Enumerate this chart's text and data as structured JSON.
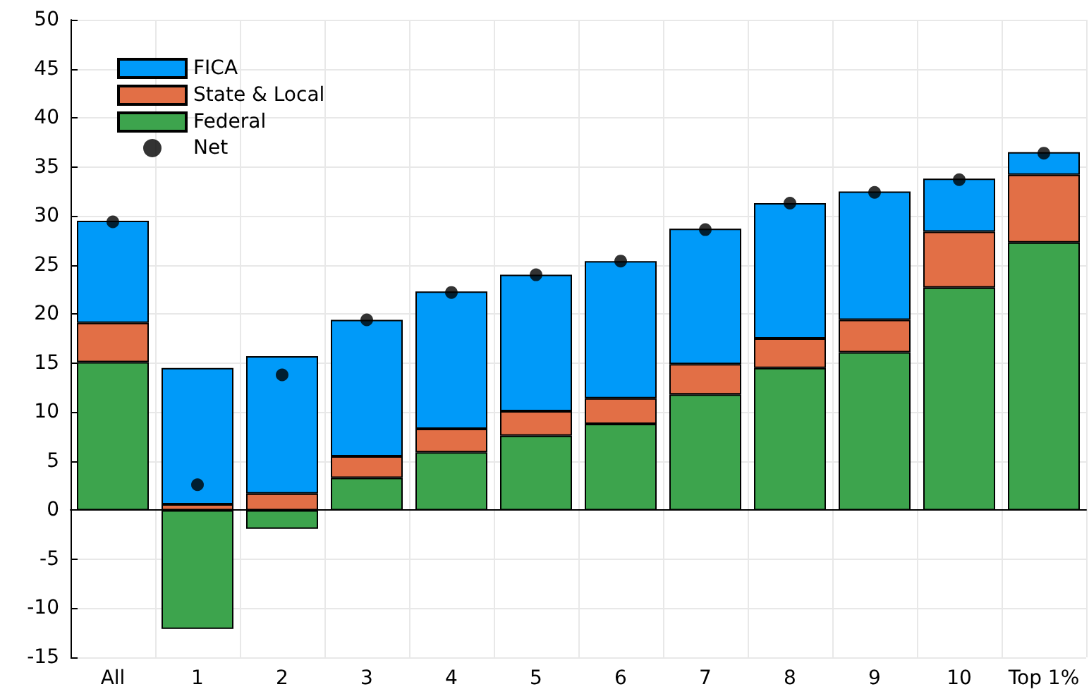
{
  "chart_data": {
    "type": "bar",
    "stacked": true,
    "categories": [
      "All",
      "1",
      "2",
      "3",
      "4",
      "5",
      "6",
      "7",
      "8",
      "9",
      "10",
      "Top 1%"
    ],
    "series": [
      {
        "name": "Federal",
        "color": "#3da44d",
        "values": [
          15.1,
          -12.1,
          -1.9,
          3.3,
          5.9,
          7.6,
          8.8,
          11.8,
          14.5,
          16.1,
          22.7,
          27.3
        ]
      },
      {
        "name": "State & Local",
        "color": "#e26f46",
        "values": [
          4.0,
          0.6,
          1.7,
          2.2,
          2.4,
          2.5,
          2.6,
          3.1,
          3.0,
          3.3,
          5.7,
          6.9
        ]
      },
      {
        "name": "FICA",
        "color": "#009af9",
        "values": [
          10.4,
          13.9,
          14.0,
          13.9,
          14.0,
          13.9,
          14.0,
          13.8,
          13.8,
          13.1,
          5.4,
          2.3
        ]
      },
      {
        "name": "Net",
        "type": "scatter",
        "color": "#000000",
        "x": [
          "All",
          "1",
          "2",
          "3",
          "4",
          "5",
          "6",
          "7",
          "8",
          "9",
          "10",
          "Top 1%"
        ],
        "values": [
          29.4,
          2.6,
          13.8,
          19.4,
          22.2,
          24.0,
          25.4,
          28.6,
          31.3,
          32.4,
          33.7,
          36.4
        ]
      }
    ],
    "marker": "circle",
    "ylim": [
      -15,
      50
    ],
    "yticks": [
      -15,
      -10,
      -5,
      0,
      5,
      10,
      15,
      20,
      25,
      30,
      35,
      40,
      45,
      50
    ],
    "grid": true,
    "legend": "top left"
  }
}
